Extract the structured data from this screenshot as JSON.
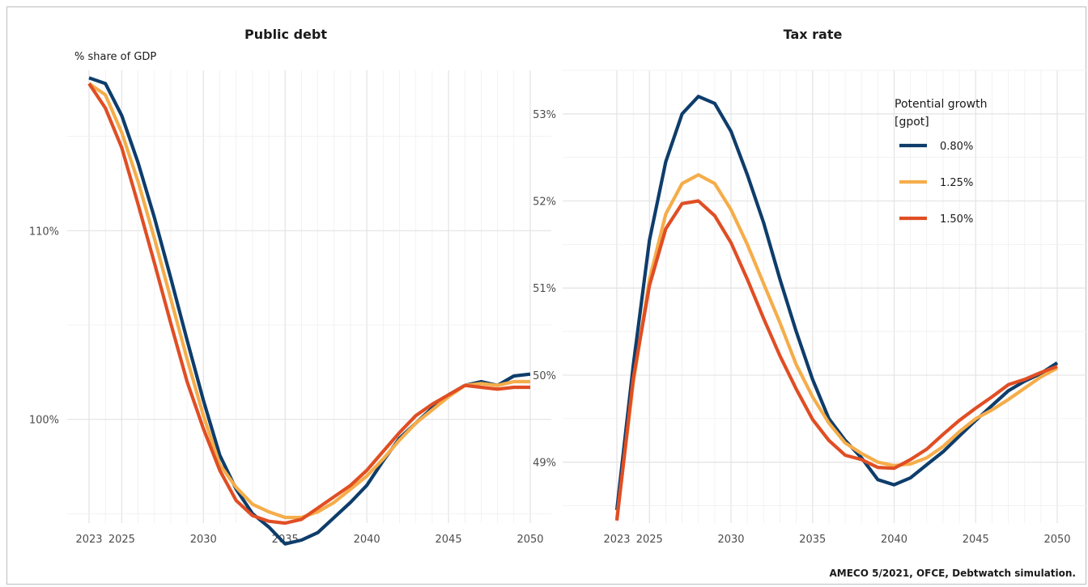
{
  "caption": "AMECO 5/2021, OFCE, Debtwatch simulation.",
  "legend": {
    "title_line1": "Potential growth",
    "title_line2": "[gpot]"
  },
  "chart_data": [
    {
      "type": "line",
      "title": "Public debt",
      "ylabel": "% share of GDP",
      "xlim": [
        2023,
        2050
      ],
      "ylim": [
        94.5,
        118.5
      ],
      "y_ticks": [
        100,
        110
      ],
      "y_tick_labels": [
        "100%",
        "110%"
      ],
      "x_ticks": [
        2023,
        2025,
        2030,
        2035,
        2040,
        2045,
        2050
      ],
      "x_tick_labels": [
        "2023",
        "2025",
        "2030",
        "2035",
        "2040",
        "2045",
        "2050"
      ],
      "x": [
        2023,
        2024,
        2025,
        2026,
        2027,
        2028,
        2029,
        2030,
        2031,
        2032,
        2033,
        2034,
        2035,
        2036,
        2037,
        2038,
        2039,
        2040,
        2041,
        2042,
        2043,
        2044,
        2045,
        2046,
        2047,
        2048,
        2049,
        2050
      ],
      "series": [
        {
          "name": "0.80%",
          "color": "#0e3d6b",
          "values": [
            118.1,
            117.8,
            116.1,
            113.6,
            110.7,
            107.5,
            104.2,
            101.0,
            98.1,
            96.3,
            95.0,
            94.3,
            93.4,
            93.6,
            94.0,
            94.8,
            95.6,
            96.5,
            97.8,
            99.0,
            99.8,
            100.6,
            101.3,
            101.8,
            102.0,
            101.8,
            102.3,
            102.4
          ]
        },
        {
          "name": "1.25%",
          "color": "#f5ad4a",
          "values": [
            117.8,
            117.2,
            115.2,
            112.6,
            109.6,
            106.4,
            103.2,
            100.2,
            97.6,
            96.4,
            95.5,
            95.1,
            94.8,
            94.8,
            95.1,
            95.6,
            96.3,
            97.0,
            97.9,
            98.9,
            99.8,
            100.5,
            101.2,
            101.8,
            101.9,
            101.8,
            102.0,
            102.0
          ]
        },
        {
          "name": "1.50%",
          "color": "#e04e24",
          "values": [
            117.8,
            116.5,
            114.4,
            111.4,
            108.3,
            105.1,
            102.0,
            99.5,
            97.3,
            95.7,
            94.9,
            94.6,
            94.5,
            94.7,
            95.3,
            95.9,
            96.5,
            97.3,
            98.3,
            99.3,
            100.2,
            100.8,
            101.3,
            101.8,
            101.7,
            101.6,
            101.7,
            101.7
          ]
        }
      ]
    },
    {
      "type": "line",
      "title": "Tax rate",
      "ylabel": "",
      "xlim": [
        2023,
        2050
      ],
      "ylim": [
        48.3,
        53.5
      ],
      "y_ticks": [
        49,
        50,
        51,
        52,
        53
      ],
      "y_tick_labels": [
        "49%",
        "50%",
        "51%",
        "52%",
        "53%"
      ],
      "x_ticks": [
        2023,
        2025,
        2030,
        2035,
        2040,
        2045,
        2050
      ],
      "x_tick_labels": [
        "2023",
        "2025",
        "2030",
        "2035",
        "2040",
        "2045",
        "2050"
      ],
      "x": [
        2023,
        2024,
        2025,
        2026,
        2027,
        2028,
        2029,
        2030,
        2031,
        2032,
        2033,
        2034,
        2035,
        2036,
        2037,
        2038,
        2039,
        2040,
        2041,
        2042,
        2043,
        2044,
        2045,
        2046,
        2047,
        2048,
        2049,
        2050
      ],
      "series": [
        {
          "name": "0.80%",
          "color": "#0e3d6b",
          "values": [
            48.45,
            50.1,
            51.55,
            52.45,
            53.0,
            53.2,
            53.12,
            52.8,
            52.3,
            51.75,
            51.1,
            50.5,
            49.95,
            49.5,
            49.25,
            49.05,
            48.8,
            48.74,
            48.82,
            48.97,
            49.12,
            49.3,
            49.48,
            49.65,
            49.82,
            49.93,
            50.02,
            50.14
          ]
        },
        {
          "name": "1.25%",
          "color": "#f5ad4a",
          "values": [
            48.35,
            49.9,
            51.1,
            51.85,
            52.2,
            52.3,
            52.2,
            51.9,
            51.5,
            51.05,
            50.6,
            50.12,
            49.75,
            49.45,
            49.22,
            49.1,
            49.0,
            48.96,
            48.98,
            49.05,
            49.18,
            49.35,
            49.5,
            49.6,
            49.72,
            49.85,
            49.98,
            50.08
          ]
        },
        {
          "name": "1.50%",
          "color": "#e04e24",
          "values": [
            48.33,
            49.95,
            51.03,
            51.68,
            51.97,
            52.0,
            51.83,
            51.52,
            51.1,
            50.65,
            50.22,
            49.84,
            49.49,
            49.25,
            49.08,
            49.03,
            48.94,
            48.93,
            49.03,
            49.15,
            49.32,
            49.48,
            49.62,
            49.75,
            49.89,
            49.95,
            50.03,
            50.1
          ]
        }
      ]
    }
  ]
}
